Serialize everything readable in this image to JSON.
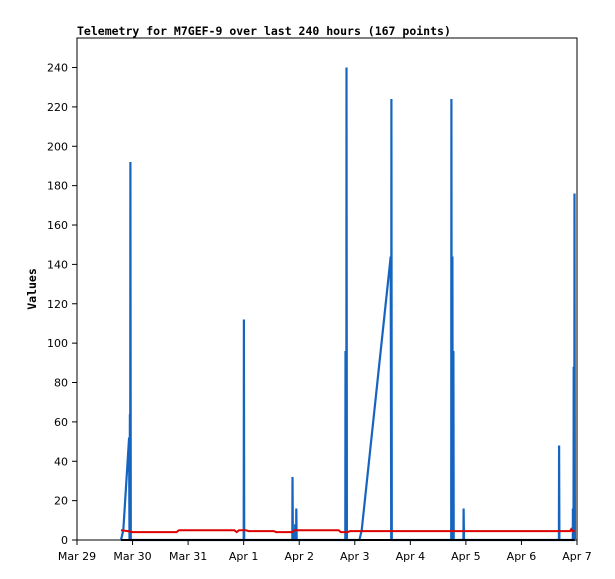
{
  "chart_data": {
    "type": "line",
    "title": "Telemetry for M7GEF-9 over last 240 hours (167 points)",
    "ylabel": "Values",
    "xlabel": "",
    "ylim": [
      0,
      255
    ],
    "y_ticks": [
      0,
      20,
      40,
      60,
      80,
      100,
      120,
      140,
      160,
      180,
      200,
      220,
      240
    ],
    "x_range_days": [
      "2024-03-29",
      "2024-04-07"
    ],
    "x_ticks": [
      {
        "date": "2024-03-29",
        "label": "Mar 29"
      },
      {
        "date": "2024-03-30",
        "label": "Mar 30"
      },
      {
        "date": "2024-03-31",
        "label": "Mar 31"
      },
      {
        "date": "2024-04-01",
        "label": "Apr 1"
      },
      {
        "date": "2024-04-02",
        "label": "Apr 2"
      },
      {
        "date": "2024-04-03",
        "label": "Apr 3"
      },
      {
        "date": "2024-04-04",
        "label": "Apr 4"
      },
      {
        "date": "2024-04-05",
        "label": "Apr 5"
      },
      {
        "date": "2024-04-06",
        "label": "Apr 6"
      },
      {
        "date": "2024-04-07",
        "label": "Apr 7"
      }
    ],
    "grid": false,
    "series": [
      {
        "color": "#1565c0",
        "points": [
          [
            "2024-03-29 19:00",
            0
          ],
          [
            "2024-03-29 20:00",
            5
          ],
          [
            "2024-03-29 22:30",
            52
          ],
          [
            "2024-03-29 22:40",
            0
          ],
          [
            "2024-03-29 22:50",
            64
          ],
          [
            "2024-03-29 23:00",
            0
          ],
          [
            "2024-03-29 23:05",
            192
          ],
          [
            "2024-03-29 23:15",
            0
          ],
          [
            "2024-04-01 00:00",
            0
          ],
          [
            "2024-04-01 00:05",
            112
          ],
          [
            "2024-04-01 00:15",
            0
          ],
          [
            "2024-04-01 21:00",
            0
          ],
          [
            "2024-04-01 21:05",
            32
          ],
          [
            "2024-04-01 21:15",
            0
          ],
          [
            "2024-04-01 22:10",
            0
          ],
          [
            "2024-04-01 22:15",
            8
          ],
          [
            "2024-04-01 22:25",
            0
          ],
          [
            "2024-04-01 22:40",
            0
          ],
          [
            "2024-04-01 22:45",
            16
          ],
          [
            "2024-04-01 22:55",
            0
          ],
          [
            "2024-04-02 19:55",
            0
          ],
          [
            "2024-04-02 20:00",
            96
          ],
          [
            "2024-04-02 20:05",
            0
          ],
          [
            "2024-04-02 20:20",
            0
          ],
          [
            "2024-04-02 20:25",
            240
          ],
          [
            "2024-04-02 20:35",
            0
          ],
          [
            "2024-04-03 02:00",
            0
          ],
          [
            "2024-04-03 03:00",
            5
          ],
          [
            "2024-04-03 15:30",
            144
          ],
          [
            "2024-04-03 15:45",
            0
          ],
          [
            "2024-04-03 15:50",
            224
          ],
          [
            "2024-04-03 16:00",
            0
          ],
          [
            "2024-04-04 17:40",
            0
          ],
          [
            "2024-04-04 17:45",
            224
          ],
          [
            "2024-04-04 17:55",
            0
          ],
          [
            "2024-04-04 18:05",
            0
          ],
          [
            "2024-04-04 18:10",
            144
          ],
          [
            "2024-04-04 18:20",
            0
          ],
          [
            "2024-04-04 18:30",
            0
          ],
          [
            "2024-04-04 18:35",
            96
          ],
          [
            "2024-04-04 18:45",
            0
          ],
          [
            "2024-04-04 22:55",
            0
          ],
          [
            "2024-04-04 23:00",
            16
          ],
          [
            "2024-04-04 23:10",
            0
          ],
          [
            "2024-04-06 16:10",
            0
          ],
          [
            "2024-04-06 16:15",
            48
          ],
          [
            "2024-04-06 16:25",
            0
          ],
          [
            "2024-04-06 22:10",
            0
          ],
          [
            "2024-04-06 22:15",
            16
          ],
          [
            "2024-04-06 22:25",
            0
          ],
          [
            "2024-04-06 22:30",
            0
          ],
          [
            "2024-04-06 22:35",
            88
          ],
          [
            "2024-04-06 22:45",
            0
          ],
          [
            "2024-04-06 22:50",
            0
          ],
          [
            "2024-04-06 22:55",
            176
          ],
          [
            "2024-04-06 23:05",
            0
          ]
        ]
      },
      {
        "color": "#dd0000",
        "points": [
          [
            "2024-03-29 19:00",
            5
          ],
          [
            "2024-03-29 22:00",
            4.5
          ],
          [
            "2024-03-30 00:00",
            4
          ],
          [
            "2024-03-30 19:00",
            4
          ],
          [
            "2024-03-30 20:00",
            5
          ],
          [
            "2024-03-31 20:00",
            5
          ],
          [
            "2024-03-31 21:00",
            4
          ],
          [
            "2024-03-31 22:00",
            5
          ],
          [
            "2024-04-01 01:00",
            5
          ],
          [
            "2024-04-01 02:00",
            4.5
          ],
          [
            "2024-04-01 13:00",
            4.5
          ],
          [
            "2024-04-01 14:00",
            4
          ],
          [
            "2024-04-01 21:00",
            4
          ],
          [
            "2024-04-01 22:00",
            5
          ],
          [
            "2024-04-02 17:00",
            5
          ],
          [
            "2024-04-02 18:00",
            4
          ],
          [
            "2024-04-02 21:00",
            4
          ],
          [
            "2024-04-02 22:00",
            4.5
          ],
          [
            "2024-04-06 21:00",
            4.5
          ],
          [
            "2024-04-06 21:30",
            5.5
          ],
          [
            "2024-04-06 22:00",
            4.5
          ],
          [
            "2024-04-06 23:00",
            4.5
          ]
        ]
      },
      {
        "color": "#000000",
        "points": [
          [
            "2024-03-29 19:00",
            0
          ],
          [
            "2024-04-06 23:00",
            0
          ]
        ]
      }
    ]
  }
}
